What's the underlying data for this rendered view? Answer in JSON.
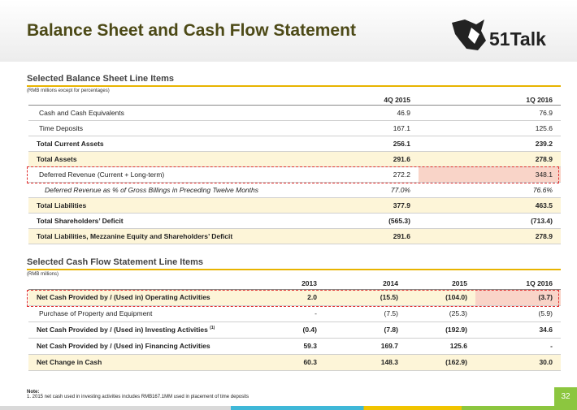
{
  "header": {
    "title": "Balance Sheet and Cash Flow Statement",
    "logo": "51Talk"
  },
  "balance_sheet": {
    "title": "Selected Balance Sheet Line Items",
    "subtitle": "(RMB millions except for percentages)",
    "columns": [
      "4Q 2015",
      "1Q 2016"
    ],
    "rows": [
      {
        "label": "Cash and Cash Equivalents",
        "values": [
          "46.9",
          "76.9"
        ]
      },
      {
        "label": "Time Deposits",
        "values": [
          "167.1",
          "125.6"
        ]
      },
      {
        "label": "Total Current Assets",
        "values": [
          "256.1",
          "239.2"
        ]
      },
      {
        "label": "Total Assets",
        "values": [
          "291.6",
          "278.9"
        ]
      },
      {
        "label": "Deferred Revenue (Current + Long-term)",
        "values": [
          "272.2",
          "348.1"
        ]
      },
      {
        "label": "Deferred Revenue as % of Gross Billings in Preceding Twelve Months",
        "values": [
          "77.0%",
          "76.6%"
        ]
      },
      {
        "label": "Total Liabilities",
        "values": [
          "377.9",
          "463.5"
        ]
      },
      {
        "label": "Total Shareholders’ Deficit",
        "values": [
          "(565.3)",
          "(713.4)"
        ]
      },
      {
        "label": "Total Liabilities, Mezzanine Equity and Shareholders’ Deficit",
        "values": [
          "291.6",
          "278.9"
        ]
      }
    ]
  },
  "cash_flow": {
    "title": "Selected Cash Flow Statement Line Items",
    "subtitle": "(RMB millions)",
    "columns": [
      "2013",
      "2014",
      "2015",
      "1Q 2016"
    ],
    "rows": [
      {
        "label": "Net Cash Provided by / (Used in) Operating Activities",
        "values": [
          "2.0",
          "(15.5)",
          "(104.0)",
          "(3.7)"
        ]
      },
      {
        "label": "Purchase of Property and Equipment",
        "values": [
          "-",
          "(7.5)",
          "(25.3)",
          "(5.9)"
        ]
      },
      {
        "label": "Net Cash Provided by / (Used in) Investing Activities",
        "footnote": "(1)",
        "values": [
          "(0.4)",
          "(7.8)",
          "(192.9)",
          "34.6"
        ]
      },
      {
        "label": "Net Cash Provided by / (Used in) Financing Activities",
        "values": [
          "59.3",
          "169.7",
          "125.6",
          "-"
        ]
      },
      {
        "label": "Net Change in Cash",
        "values": [
          "60.3",
          "148.3",
          "(162.9)",
          "30.0"
        ]
      }
    ]
  },
  "note": {
    "label": "Note:",
    "items": [
      "1. 2015 net cash used in investing activities includes RMB167.1MM used in placement of time deposits"
    ]
  },
  "page_number": "32"
}
